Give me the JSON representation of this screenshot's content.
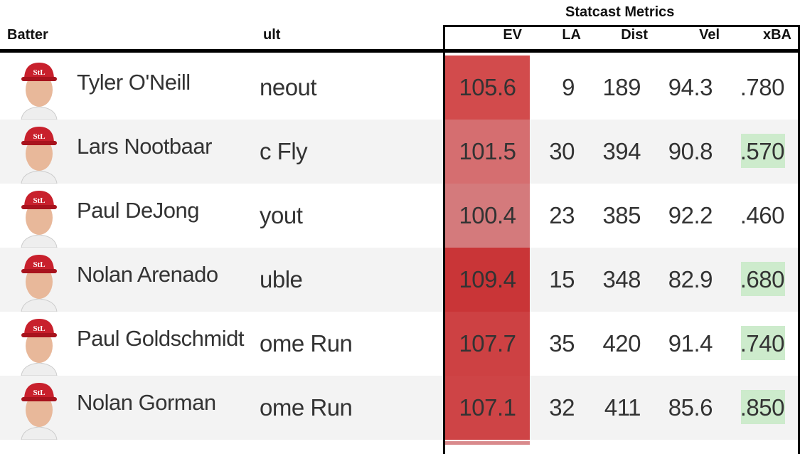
{
  "header": {
    "group_title": "Statcast Metrics",
    "columns": [
      "Batter",
      "ult",
      "EV",
      "LA",
      "Dist",
      "Vel",
      "xBA"
    ]
  },
  "table": {
    "rows": [
      {
        "name": "Tyler O'Neill",
        "result": "neout",
        "ev": "105.6",
        "la": "9",
        "dist": "189",
        "vel": "94.3",
        "xba": ".780",
        "ev_color": "#d24b4c",
        "xba_color": null
      },
      {
        "name": "Lars Nootbaar",
        "result": "c Fly",
        "ev": "101.5",
        "la": "30",
        "dist": "394",
        "vel": "90.8",
        "xba": ".570",
        "ev_color": "#d56e70",
        "xba_color": "#cdebcc"
      },
      {
        "name": "Paul DeJong",
        "result": "yout",
        "ev": "100.4",
        "la": "23",
        "dist": "385",
        "vel": "92.2",
        "xba": ".460",
        "ev_color": "#d47a7c",
        "xba_color": null
      },
      {
        "name": "Nolan Arenado",
        "result": "uble",
        "ev": "109.4",
        "la": "15",
        "dist": "348",
        "vel": "82.9",
        "xba": ".680",
        "ev_color": "#c93537",
        "xba_color": "#cdebcc"
      },
      {
        "name": "Paul Goldschmidt",
        "result": "ome Run",
        "ev": "107.7",
        "la": "35",
        "dist": "420",
        "vel": "91.4",
        "xba": ".740",
        "ev_color": "#cd4143",
        "xba_color": "#cdebcc"
      },
      {
        "name": "Nolan Gorman",
        "result": "ome Run",
        "ev": "107.1",
        "la": "32",
        "dist": "411",
        "vel": "85.6",
        "xba": ".850",
        "ev_color": "#ce4446",
        "xba_color": "#cdebcc"
      }
    ]
  }
}
